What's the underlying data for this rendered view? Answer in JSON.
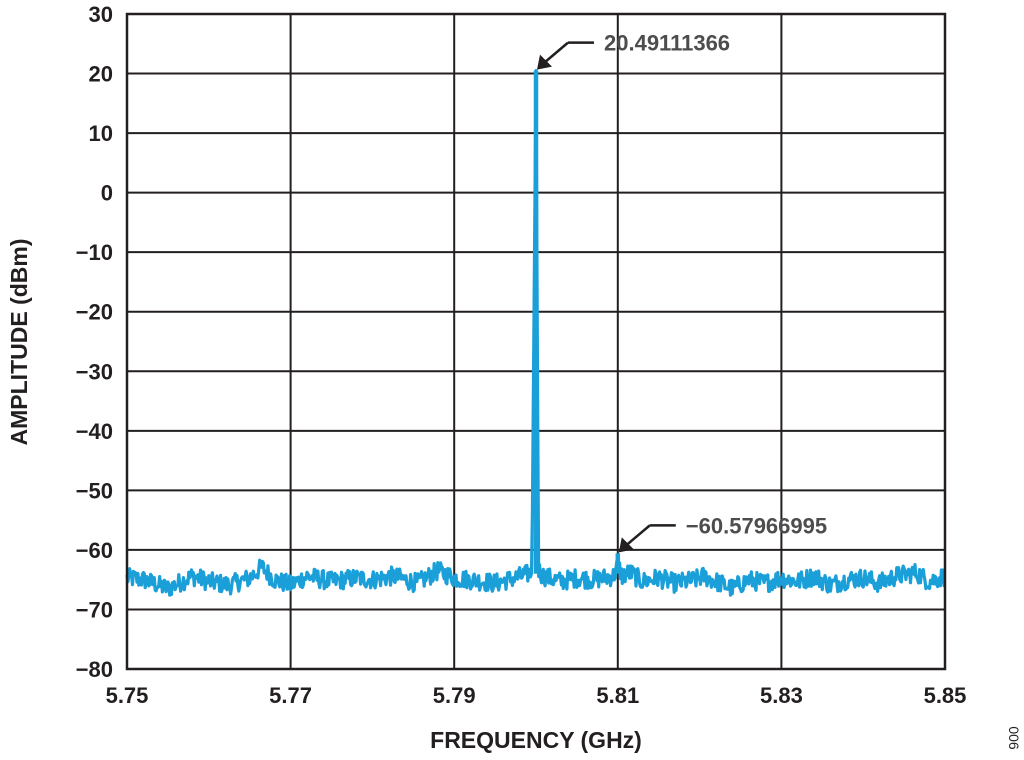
{
  "chart_data": {
    "type": "line",
    "xlabel": "FREQUENCY (GHz)",
    "ylabel": "AMPLITUDE (dBm)",
    "xlim": [
      5.75,
      5.85
    ],
    "ylim": [
      -80,
      30
    ],
    "xticks": [
      "5.75",
      "5.77",
      "5.79",
      "5.81",
      "5.83",
      "5.85"
    ],
    "yticks": [
      "30",
      "20",
      "10",
      "0",
      "−10",
      "−20",
      "−30",
      "−40",
      "−50",
      "−60",
      "−70",
      "−80"
    ],
    "grid": true,
    "line_color": "#1a9fd8",
    "noise_floor_dbm": -65,
    "series": [
      {
        "values_note": "",
        "x": [
          5.75,
          5.752,
          5.755,
          5.758,
          5.76,
          5.7625,
          5.765,
          5.7665,
          5.768,
          5.77,
          5.772,
          5.775,
          5.778,
          5.78,
          5.7825,
          5.7855,
          5.788,
          5.79,
          5.792,
          5.795,
          5.7975,
          5.7995,
          5.8,
          5.8003,
          5.8006,
          5.801,
          5.803,
          5.805,
          5.807,
          5.8095,
          5.81,
          5.8105,
          5.8115,
          5.813,
          5.815,
          5.817,
          5.8195,
          5.8205,
          5.822,
          5.824,
          5.826,
          5.828,
          5.83,
          5.832,
          5.834,
          5.836,
          5.838,
          5.84,
          5.842,
          5.844,
          5.8465,
          5.848,
          5.85
        ],
        "y": [
          -64.5,
          -65,
          -67.5,
          -64,
          -65.5,
          -66.5,
          -64.5,
          -61.5,
          -65,
          -66.5,
          -64,
          -65.5,
          -64.5,
          -65,
          -64,
          -66,
          -62.5,
          -64.5,
          -65,
          -66,
          -64.5,
          -63,
          20.49111366,
          -62,
          -63.5,
          -64,
          -65.5,
          -64.5,
          -65,
          -64,
          -60.57966995,
          -64,
          -63,
          -65.5,
          -64.5,
          -66,
          -65,
          -64,
          -65.5,
          -67.5,
          -65,
          -66,
          -64.5,
          -65.5,
          -64,
          -66.5,
          -65,
          -64.5,
          -66,
          -64,
          -63,
          -65.5,
          -64
        ]
      }
    ],
    "annotations": [
      {
        "text": "20.49111366",
        "x": 5.8,
        "y": 20.49111366
      },
      {
        "text": "−60.57966995",
        "x": 5.81,
        "y": -60.57966995
      }
    ],
    "figure_id": "006"
  }
}
